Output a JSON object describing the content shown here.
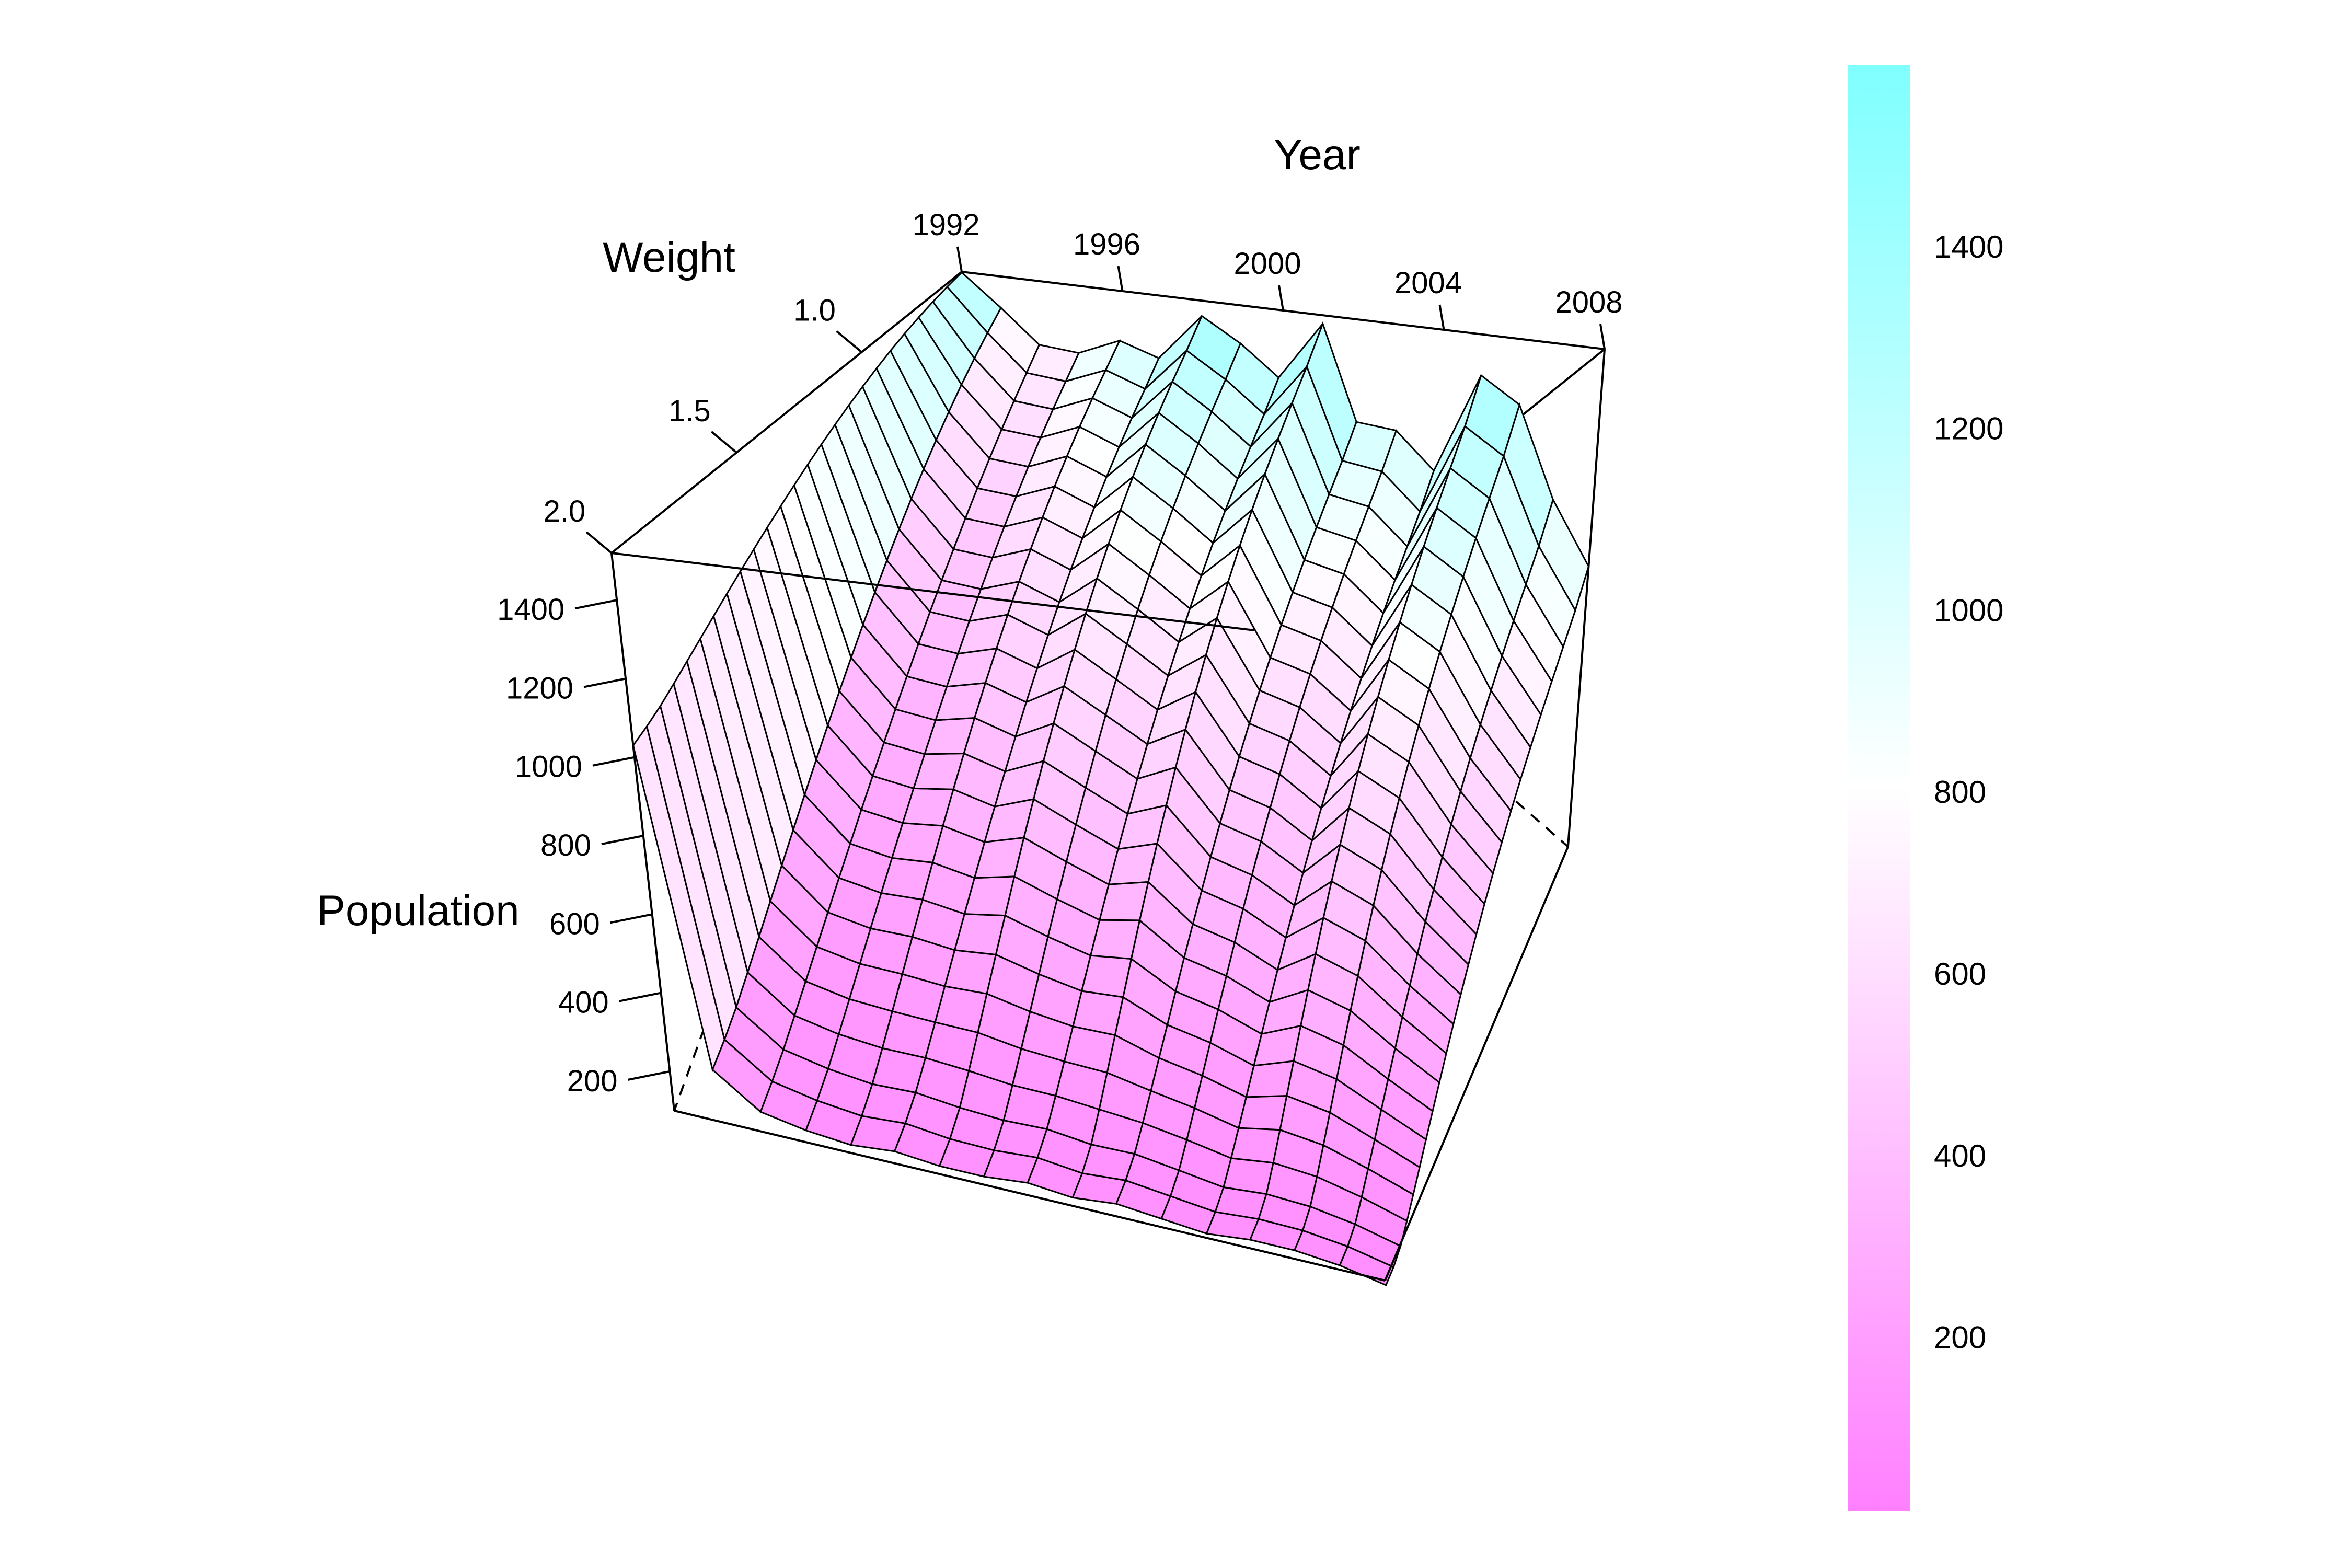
{
  "chart_data": {
    "type": "surface",
    "title": "",
    "x_axis": {
      "label": "Year",
      "ticks": [
        1992,
        1996,
        2000,
        2004,
        2008
      ],
      "range": [
        1992,
        2008
      ]
    },
    "y_axis": {
      "label": "Weight",
      "ticks": [
        "1.0",
        "1.5",
        "2.0"
      ],
      "range": [
        0.6,
        2.0
      ]
    },
    "z_axis": {
      "label": "Population",
      "ticks": [
        200,
        400,
        600,
        800,
        1000,
        1200,
        1400
      ],
      "range": [
        100,
        1520
      ]
    },
    "colorbar": {
      "ticks": [
        200,
        400,
        600,
        800,
        1000,
        1200,
        1400
      ],
      "range": [
        10,
        1600
      ],
      "low_color": "#ff80ff",
      "mid_color": "#ffffff",
      "high_color": "#80ffff"
    },
    "years": [
      1992,
      1993,
      1994,
      1995,
      1996,
      1997,
      1998,
      1999,
      2000,
      2001,
      2002,
      2003,
      2004,
      2005,
      2006,
      2007,
      2008
    ],
    "weight_range": [
      0.6,
      2.0
    ],
    "weight_steps": 24,
    "peak_population_by_year": [
      1500,
      930,
      650,
      800,
      1080,
      1050,
      1420,
      1300,
      1170,
      1480,
      1080,
      1100,
      1000,
      1380,
      1310,
      1050,
      900
    ],
    "low_population_by_year": [
      1030,
      230,
      150,
      130,
      120,
      130,
      120,
      120,
      130,
      120,
      130,
      120,
      110,
      120,
      120,
      110,
      90
    ],
    "grid": false,
    "legend": "colorbar-right"
  }
}
